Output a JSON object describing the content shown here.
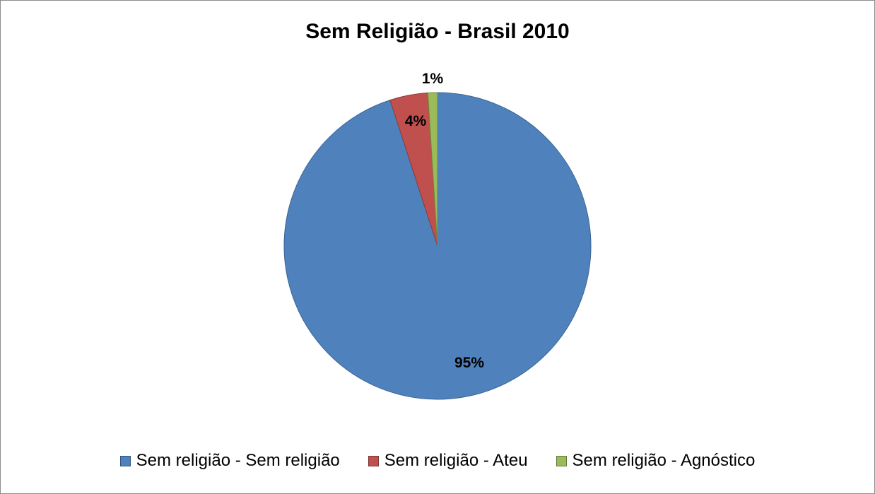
{
  "chart_data": {
    "type": "pie",
    "title": "Sem Religião - Brasil 2010",
    "slices": [
      {
        "label": "Sem religião - Sem religião",
        "value": 95,
        "display": "95%",
        "color": "#4f81bd",
        "edge": "#3b6593"
      },
      {
        "label": "Sem religião - Ateu",
        "value": 4,
        "display": "4%",
        "color": "#c0504d",
        "edge": "#8f3a38"
      },
      {
        "label": "Sem religião - Agnóstico",
        "value": 1,
        "display": "1%",
        "color": "#9bbb59",
        "edge": "#6f8a3c"
      }
    ],
    "legend_position": "bottom"
  }
}
